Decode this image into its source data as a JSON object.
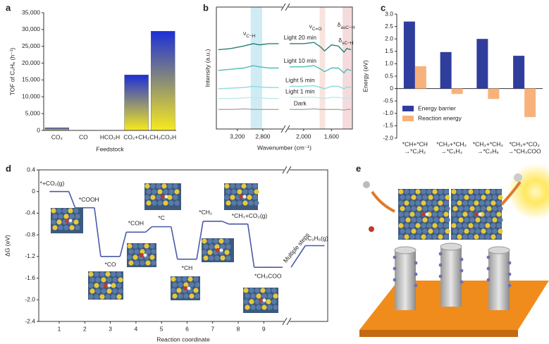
{
  "chart_data": [
    {
      "panel": "a",
      "type": "bar",
      "x_label": "Feedstock",
      "y_label": "TOF of C₂H₆ (h⁻¹)",
      "categories": [
        "CO₂",
        "CO",
        "HCO₂H",
        "CO₂+CH₄",
        "CH₃CO₂H"
      ],
      "values": [
        800,
        0,
        0,
        16500,
        29500
      ],
      "gradient": [
        "#1c2fd6",
        "#f8ea1c"
      ],
      "ylim": [
        0,
        35000
      ],
      "yticks": [
        0,
        {
          "value": 5000,
          "label": "5,000"
        },
        {
          "value": 10000,
          "label": "10,000"
        },
        {
          "value": 15000,
          "label": "15,000"
        },
        {
          "value": 20000,
          "label": "20,000"
        },
        {
          "value": 25000,
          "label": "25,000"
        },
        {
          "value": 30000,
          "label": "30,000"
        },
        {
          "value": 35000,
          "label": "35,000"
        }
      ]
    },
    {
      "panel": "b",
      "type": "line",
      "x_label": "Wavenumber (cm⁻¹)",
      "y_label": "Intensity (a.u.)",
      "x": [
        3500,
        3300,
        3100,
        2950,
        2850,
        2700,
        2550,
        2200,
        2000,
        1850,
        1750,
        1700,
        1600,
        1500,
        1420,
        1380,
        1320
      ],
      "xlim": [
        3530,
        1300
      ],
      "xbreak": [
        2500,
        2210
      ],
      "ylim": [
        0,
        10
      ],
      "xticks": [
        {
          "value": 3200,
          "label": "3,200"
        },
        {
          "value": 2800,
          "label": "2,800"
        },
        {
          "value": 2000,
          "label": "2,000"
        },
        {
          "value": 1600,
          "label": "1,600"
        }
      ],
      "bands": [
        {
          "symbol": "ν",
          "sub": "C−H",
          "range": [
            2990,
            2810
          ],
          "color": "#bfe6f0"
        },
        {
          "symbol": "ν",
          "sub": "C=O",
          "range": [
            1770,
            1690
          ],
          "color": "#f6d9d2"
        },
        {
          "symbol": "δ",
          "sub": "asC−H",
          "range": [
            1440,
            1310
          ],
          "color": "#f1cfd2"
        },
        {
          "symbol": "δ",
          "sub": "sC−H",
          "range": [
            1440,
            1310
          ],
          "color": "#f1cfd2"
        }
      ],
      "series": [
        {
          "name": "Dark",
          "color": "#a9a9a9",
          "values": [
            1.6,
            1.6,
            1.65,
            1.6,
            1.6,
            1.6,
            1.6,
            1.6,
            1.6,
            1.65,
            1.6,
            1.6,
            1.6,
            1.6,
            1.55,
            1.6,
            1.6
          ]
        },
        {
          "name": "Light 1 min",
          "color": "#bfe9ee",
          "values": [
            2.5,
            2.5,
            2.55,
            2.6,
            2.55,
            2.5,
            2.5,
            2.6,
            2.6,
            2.6,
            2.55,
            2.5,
            2.6,
            2.6,
            2.5,
            2.55,
            2.5
          ]
        },
        {
          "name": "Light 5 min",
          "color": "#8bdade",
          "values": [
            3.3,
            3.35,
            3.4,
            3.5,
            3.45,
            3.4,
            3.4,
            3.5,
            3.5,
            3.55,
            3.4,
            3.3,
            3.5,
            3.5,
            3.3,
            3.45,
            3.4
          ]
        },
        {
          "name": "Light 10 min",
          "color": "#4fbcb8",
          "values": [
            4.8,
            4.9,
            5.0,
            5.2,
            5.1,
            5.0,
            5.0,
            5.1,
            5.1,
            5.2,
            4.9,
            4.7,
            5.0,
            5.0,
            4.6,
            4.9,
            4.8
          ]
        },
        {
          "name": "Light 20 min",
          "color": "#2a7f76",
          "values": [
            6.5,
            6.6,
            6.8,
            7.0,
            6.9,
            7.0,
            7.0,
            7.0,
            7.0,
            7.1,
            6.7,
            6.4,
            6.9,
            6.8,
            6.3,
            6.6,
            6.5
          ]
        }
      ]
    },
    {
      "panel": "c",
      "type": "bar",
      "y_label": "Energy (eV)",
      "categories": [
        [
          "*CH+*CH",
          "→*C₂H₂"
        ],
        [
          "*CH₂+*CH₂",
          "→*C₂H₄"
        ],
        [
          "*CH₃+*CH₃",
          "→*C₂H₆"
        ],
        [
          "*CH₃+*CO₂",
          "→*CH₃COO"
        ]
      ],
      "series": [
        {
          "name": "Energy barrier",
          "color": "#2f3d9c",
          "values": [
            2.7,
            1.47,
            2.0,
            1.32
          ]
        },
        {
          "name": "Reaction energy",
          "color": "#f7b27b",
          "values": [
            0.9,
            -0.22,
            -0.42,
            -1.15
          ]
        }
      ],
      "ylim": [
        -2.0,
        3.0
      ],
      "yticks": [
        {
          "value": -2.0,
          "label": "-2.0"
        },
        -1.5,
        {
          "value": -1.0,
          "label": "-1.0"
        },
        -0.5,
        0,
        0.5,
        {
          "value": 1.0,
          "label": "1.0"
        },
        1.5,
        {
          "value": 2.0,
          "label": "2.0"
        },
        2.5,
        {
          "value": 3.0,
          "label": "3.0"
        }
      ],
      "legend": "lower left"
    },
    {
      "panel": "d",
      "type": "line",
      "levels": true,
      "x_label": "Reaction coordinate",
      "y_label": "ΔG (eV)",
      "x": [
        1,
        2,
        3,
        4,
        5,
        6,
        7,
        8,
        9,
        11
      ],
      "labels": [
        "*+CO₂(g)",
        "*COOH",
        "*CO",
        "*COH",
        "*C",
        "*CH",
        "*CH₂",
        "*CH₃+CO₂(g)",
        "*CH₃COO",
        "C₂H₆(g)"
      ],
      "values": [
        0,
        -0.3,
        -1.2,
        -0.75,
        -0.65,
        -1.25,
        -0.55,
        -0.6,
        -1.4,
        -1.0
      ],
      "color": "#4a5aa8",
      "annotation": "Multiple steps",
      "xlim": [
        0.2,
        11.5
      ],
      "xbreak": 9.9,
      "ylim": [
        -2.4,
        0.4
      ],
      "xticks": [
        1,
        2,
        3,
        4,
        5,
        6,
        7,
        8,
        9
      ],
      "yticks": [
        0.4,
        0,
        -0.4,
        -0.8,
        -1.2,
        -1.6,
        {
          "value": -2.0,
          "label": "-2.0"
        },
        -2.4
      ]
    }
  ],
  "illustration": {
    "panel": "e"
  }
}
